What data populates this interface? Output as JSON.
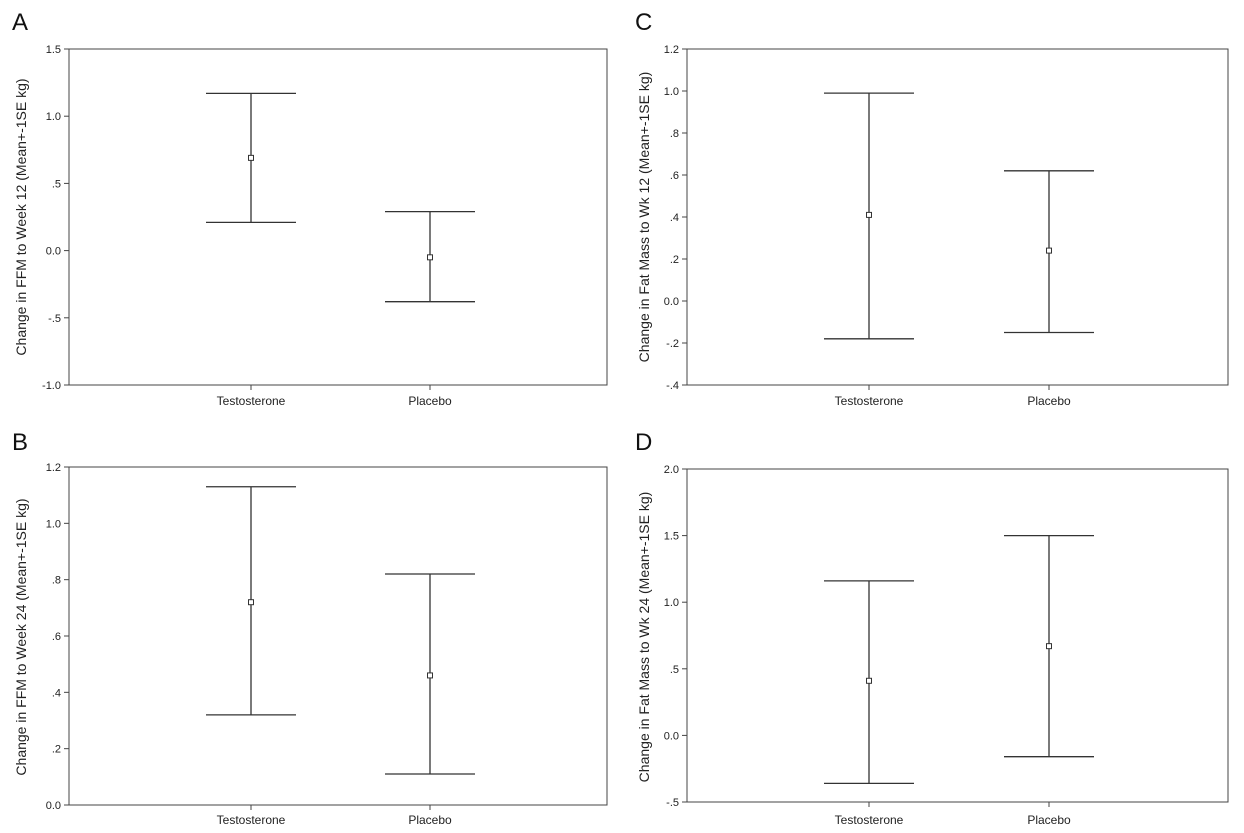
{
  "chart_data": [
    {
      "panel": "A",
      "type": "errorbar",
      "ylabel": "Change in FFM to Week 12 (Mean+-1SE kg)",
      "categories": [
        "Testosterone",
        "Placebo"
      ],
      "ylim": [
        -1.0,
        1.5
      ],
      "yticks": [
        -1.0,
        -0.5,
        0.0,
        0.5,
        1.0,
        1.5
      ],
      "ytick_labels": [
        "-1.0",
        "-.5",
        "0.0",
        ".5",
        "1.0",
        "1.5"
      ],
      "series": [
        {
          "category": "Testosterone",
          "mean": 0.69,
          "lower": 0.21,
          "upper": 1.17
        },
        {
          "category": "Placebo",
          "mean": -0.05,
          "lower": -0.38,
          "upper": 0.29
        }
      ]
    },
    {
      "panel": "C",
      "type": "errorbar",
      "ylabel": "Change in Fat Mass to Wk 12 (Mean+-1SE kg)",
      "categories": [
        "Testosterone",
        "Placebo"
      ],
      "ylim": [
        -0.4,
        1.2
      ],
      "yticks": [
        -0.4,
        -0.2,
        0.0,
        0.2,
        0.4,
        0.6,
        0.8,
        1.0,
        1.2
      ],
      "ytick_labels": [
        "-.4",
        "-.2",
        "0.0",
        ".2",
        ".4",
        ".6",
        ".8",
        "1.0",
        "1.2"
      ],
      "series": [
        {
          "category": "Testosterone",
          "mean": 0.41,
          "lower": -0.18,
          "upper": 0.99
        },
        {
          "category": "Placebo",
          "mean": 0.24,
          "lower": -0.15,
          "upper": 0.62
        }
      ]
    },
    {
      "panel": "B",
      "type": "errorbar",
      "ylabel": "Change in FFM to Week 24 (Mean+-1SE kg)",
      "categories": [
        "Testosterone",
        "Placebo"
      ],
      "ylim": [
        0.0,
        1.2
      ],
      "yticks": [
        0.0,
        0.2,
        0.4,
        0.6,
        0.8,
        1.0,
        1.2
      ],
      "ytick_labels": [
        "0.0",
        ".2",
        ".4",
        ".6",
        ".8",
        "1.0",
        "1.2"
      ],
      "series": [
        {
          "category": "Testosterone",
          "mean": 0.72,
          "lower": 0.32,
          "upper": 1.13
        },
        {
          "category": "Placebo",
          "mean": 0.46,
          "lower": 0.11,
          "upper": 0.82
        }
      ]
    },
    {
      "panel": "D",
      "type": "errorbar",
      "ylabel": "Change in Fat Mass to Wk 24 (Mean+-1SE kg)",
      "categories": [
        "Testosterone",
        "Placebo"
      ],
      "ylim": [
        -0.5,
        2.0
      ],
      "yticks": [
        -0.5,
        0.0,
        0.5,
        1.0,
        1.5,
        2.0
      ],
      "ytick_labels": [
        "-.5",
        "0.0",
        ".5",
        "1.0",
        "1.5",
        "2.0"
      ],
      "series": [
        {
          "category": "Testosterone",
          "mean": 0.41,
          "lower": -0.36,
          "upper": 1.16
        },
        {
          "category": "Placebo",
          "mean": 0.67,
          "lower": -0.16,
          "upper": 1.5
        }
      ]
    }
  ]
}
